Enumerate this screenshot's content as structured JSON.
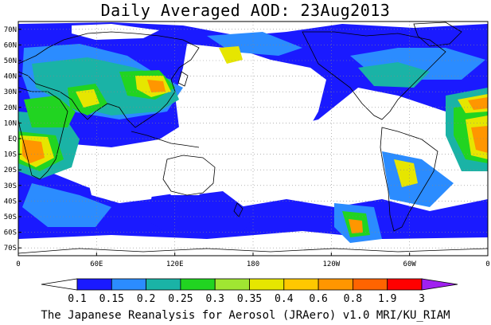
{
  "title": "Daily Averaged AOD: 23Aug2013",
  "credit": "The Japanese Reanalysis for Aerosol (JRAero) v1.0 MRI/KU_RIAM",
  "map": {
    "lon_range": [
      0,
      360
    ],
    "lat_range": [
      -75,
      75
    ],
    "lat_labels": [
      "70N",
      "60N",
      "50N",
      "40N",
      "30N",
      "20N",
      "10N",
      "EQ",
      "10S",
      "20S",
      "30S",
      "40S",
      "50S",
      "60S",
      "70S"
    ],
    "lat_values": [
      70,
      60,
      50,
      40,
      30,
      20,
      10,
      0,
      -10,
      -20,
      -30,
      -40,
      -50,
      -60,
      -70
    ],
    "lon_labels": [
      "0",
      "60E",
      "120E",
      "180",
      "120W",
      "60W",
      "0"
    ],
    "lon_values": [
      0,
      60,
      120,
      180,
      240,
      300,
      360
    ],
    "grid": true
  },
  "colorbar": {
    "levels": [
      "0.1",
      "0.15",
      "0.2",
      "0.25",
      "0.3",
      "0.35",
      "0.4",
      "0.6",
      "0.8",
      "1.9",
      "3"
    ],
    "colors": [
      "#ffffff",
      "#1a1aff",
      "#2b8cff",
      "#1ab3a6",
      "#21d421",
      "#a0e632",
      "#e6e600",
      "#ffc800",
      "#ff9600",
      "#ff6400",
      "#ff0000",
      "#a020f0"
    ]
  },
  "fields": {
    "blue": "#1a1aff",
    "lightblue": "#2b8cff",
    "teal": "#1ab3a6",
    "green": "#21d421",
    "yellowgreen": "#a0e632",
    "yellow": "#e6e600",
    "orange": "#ff9600",
    "coast": "#000000"
  }
}
